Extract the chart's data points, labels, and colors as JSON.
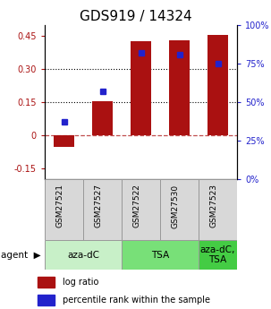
{
  "title": "GDS919 / 14324",
  "samples": [
    "GSM27521",
    "GSM27527",
    "GSM27522",
    "GSM27530",
    "GSM27523"
  ],
  "log_ratios": [
    -0.055,
    0.155,
    0.425,
    0.43,
    0.455
  ],
  "percentile_ranks": [
    37,
    57,
    82,
    81,
    75
  ],
  "ylim_left": [
    -0.2,
    0.5
  ],
  "ylim_right": [
    0,
    100
  ],
  "yticks_left": [
    -0.15,
    0,
    0.15,
    0.3,
    0.45
  ],
  "yticks_right": [
    0,
    25,
    50,
    75,
    100
  ],
  "ytick_labels_left": [
    "-0.15",
    "0",
    "0.15",
    "0.30",
    "0.45"
  ],
  "ytick_labels_right": [
    "0%",
    "25%",
    "50%",
    "75%",
    "100%"
  ],
  "hlines_dotted": [
    0.15,
    0.3
  ],
  "hline_dashed": 0,
  "bar_color": "#aa1111",
  "dot_color": "#2222cc",
  "agent_groups": [
    {
      "label": "aza-dC",
      "spans": [
        0,
        2
      ],
      "color": "#c8f0c8"
    },
    {
      "label": "TSA",
      "spans": [
        2,
        4
      ],
      "color": "#78e078"
    },
    {
      "label": "aza-dC,\nTSA",
      "spans": [
        4,
        5
      ],
      "color": "#44cc44"
    }
  ],
  "legend_items": [
    {
      "color": "#aa1111",
      "label": "log ratio"
    },
    {
      "color": "#2222cc",
      "label": "percentile rank within the sample"
    }
  ],
  "bar_width": 0.55,
  "title_fontsize": 11,
  "tick_fontsize": 7,
  "sample_fontsize": 6.5,
  "agent_fontsize": 7.5,
  "legend_fontsize": 7
}
